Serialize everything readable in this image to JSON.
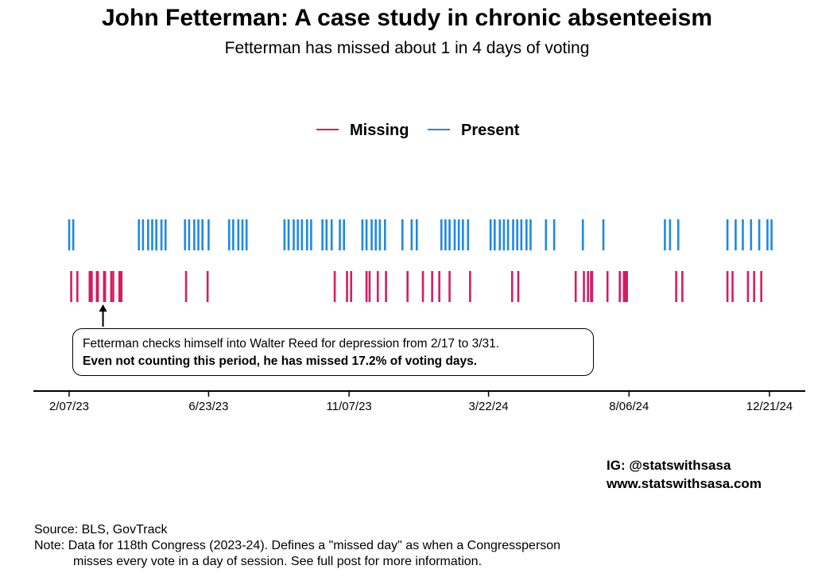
{
  "title": "John Fetterman: A case study in chronic absenteeism",
  "subtitle": "Fetterman has missed about 1 in 4 days of voting",
  "legend": [
    {
      "label": "Missing",
      "color": "#d81b60"
    },
    {
      "label": "Present",
      "color": "#1e88e5"
    }
  ],
  "annotation": {
    "line1": "Fetterman checks himself into Walter Reed for depression from 2/17 to 3/31.",
    "line2": "Even not counting this period, he has missed 17.2% of voting days."
  },
  "credits": {
    "line1": "IG: @statswithsasa",
    "line2": "www.statswithsasa.com"
  },
  "footer": {
    "source": "Source: BLS, GovTrack",
    "note_line1": "Note: Data for 118th Congress (2023-24). Defines a \"missed day\" as when a Congressperson",
    "note_line2": "misses every vote in a day of session. See full post for more information."
  },
  "chart_data": {
    "type": "strip",
    "x_axis": {
      "type": "date",
      "range": [
        "2023-01-31",
        "2024-12-31"
      ],
      "ticks": [
        "2023-02-07",
        "2023-06-23",
        "2023-11-07",
        "2024-03-22",
        "2024-08-06",
        "2024-12-21"
      ],
      "tick_labels": [
        "2/07/23",
        "6/23/23",
        "11/07/23",
        "3/22/24",
        "8/06/24",
        "12/21/24"
      ]
    },
    "annotation_arrow_date": "2023-03-12",
    "series": [
      {
        "name": "Present",
        "color": "#1e88e5",
        "dates": [
          "2023-02-07",
          "2023-02-11",
          "2023-04-16",
          "2023-04-20",
          "2023-04-25",
          "2023-04-29",
          "2023-05-03",
          "2023-05-08",
          "2023-05-12",
          "2023-05-31",
          "2023-06-04",
          "2023-06-09",
          "2023-06-13",
          "2023-06-17",
          "2023-06-23",
          "2023-07-13",
          "2023-07-17",
          "2023-07-22",
          "2023-07-26",
          "2023-07-30",
          "2023-09-05",
          "2023-09-09",
          "2023-09-14",
          "2023-09-18",
          "2023-09-22",
          "2023-09-27",
          "2023-10-01",
          "2023-10-12",
          "2023-10-16",
          "2023-10-21",
          "2023-10-29",
          "2023-11-02",
          "2023-11-20",
          "2023-11-24",
          "2023-11-29",
          "2023-12-03",
          "2023-12-07",
          "2023-12-12",
          "2023-12-29",
          "2024-01-07",
          "2024-01-12",
          "2024-02-05",
          "2024-02-09",
          "2024-02-13",
          "2024-02-18",
          "2024-02-22",
          "2024-02-26",
          "2024-03-02",
          "2024-03-24",
          "2024-03-28",
          "2024-04-02",
          "2024-04-06",
          "2024-04-10",
          "2024-04-15",
          "2024-04-19",
          "2024-04-23",
          "2024-04-28",
          "2024-05-02",
          "2024-05-17",
          "2024-05-25",
          "2024-06-22",
          "2024-07-12",
          "2024-09-10",
          "2024-09-15",
          "2024-09-23",
          "2024-11-10",
          "2024-11-18",
          "2024-11-25",
          "2024-12-03",
          "2024-12-11",
          "2024-12-19",
          "2024-12-23"
        ]
      },
      {
        "name": "Missing",
        "color": "#d81b60",
        "dates": [
          "2023-02-09",
          "2023-02-15",
          "2023-02-27",
          "2023-02-28",
          "2023-03-01",
          "2023-03-06",
          "2023-03-07",
          "2023-03-13",
          "2023-03-14",
          "2023-03-20",
          "2023-03-22",
          "2023-03-28",
          "2023-03-30",
          "2023-06-01",
          "2023-06-22",
          "2023-10-24",
          "2023-11-05",
          "2023-11-09",
          "2023-11-24",
          "2023-11-27",
          "2023-12-05",
          "2023-12-13",
          "2024-01-03",
          "2024-01-18",
          "2024-01-27",
          "2024-02-03",
          "2024-02-13",
          "2024-03-04",
          "2024-04-14",
          "2024-04-20",
          "2024-06-15",
          "2024-06-23",
          "2024-06-27",
          "2024-06-30",
          "2024-07-01",
          "2024-07-16",
          "2024-07-28",
          "2024-08-01",
          "2024-08-02",
          "2024-08-03",
          "2024-08-04",
          "2024-09-21",
          "2024-09-27",
          "2024-11-10",
          "2024-11-15",
          "2024-11-30",
          "2024-12-06",
          "2024-12-13"
        ]
      }
    ]
  }
}
